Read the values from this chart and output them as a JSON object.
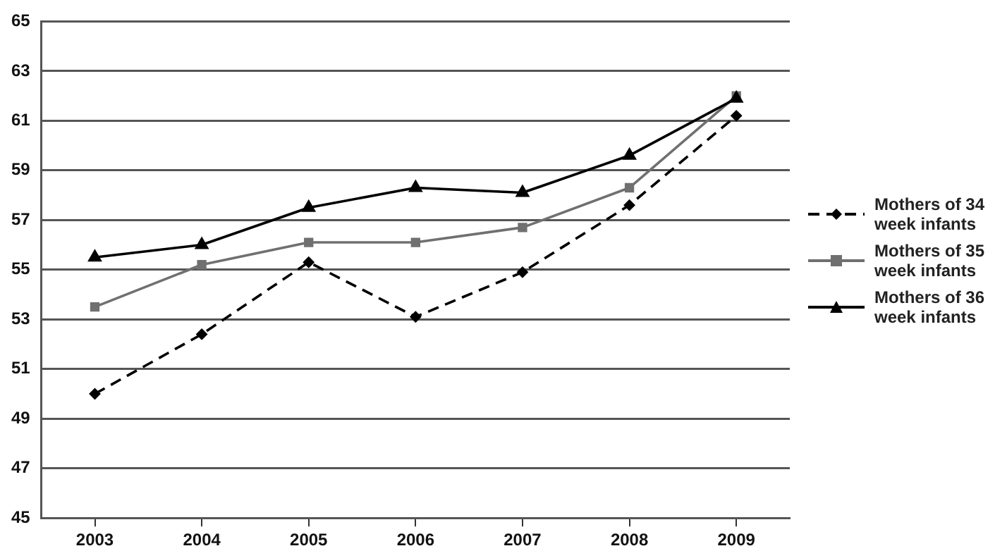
{
  "chart_data": {
    "type": "line",
    "categories": [
      "2003",
      "2004",
      "2005",
      "2006",
      "2007",
      "2008",
      "2009"
    ],
    "ylim": [
      45,
      65
    ],
    "yticks": [
      45,
      47,
      49,
      51,
      53,
      55,
      57,
      59,
      61,
      63,
      65
    ],
    "grid": "y",
    "legend": "right",
    "series": [
      {
        "name": "Mothers of 34 week infants",
        "color": "#000000",
        "marker": "diamond",
        "line_style": "dashed",
        "values": [
          50.0,
          52.4,
          55.3,
          53.1,
          54.9,
          57.6,
          61.2
        ]
      },
      {
        "name": "Mothers of 35 week infants",
        "color": "#707070",
        "marker": "square",
        "line_style": "solid",
        "values": [
          53.5,
          55.2,
          56.1,
          56.1,
          56.7,
          58.3,
          62.0
        ]
      },
      {
        "name": "Mothers of 36 week infants",
        "color": "#000000",
        "marker": "triangle",
        "line_style": "solid",
        "values": [
          55.5,
          56.0,
          57.5,
          58.3,
          58.1,
          59.6,
          61.9
        ]
      }
    ]
  }
}
